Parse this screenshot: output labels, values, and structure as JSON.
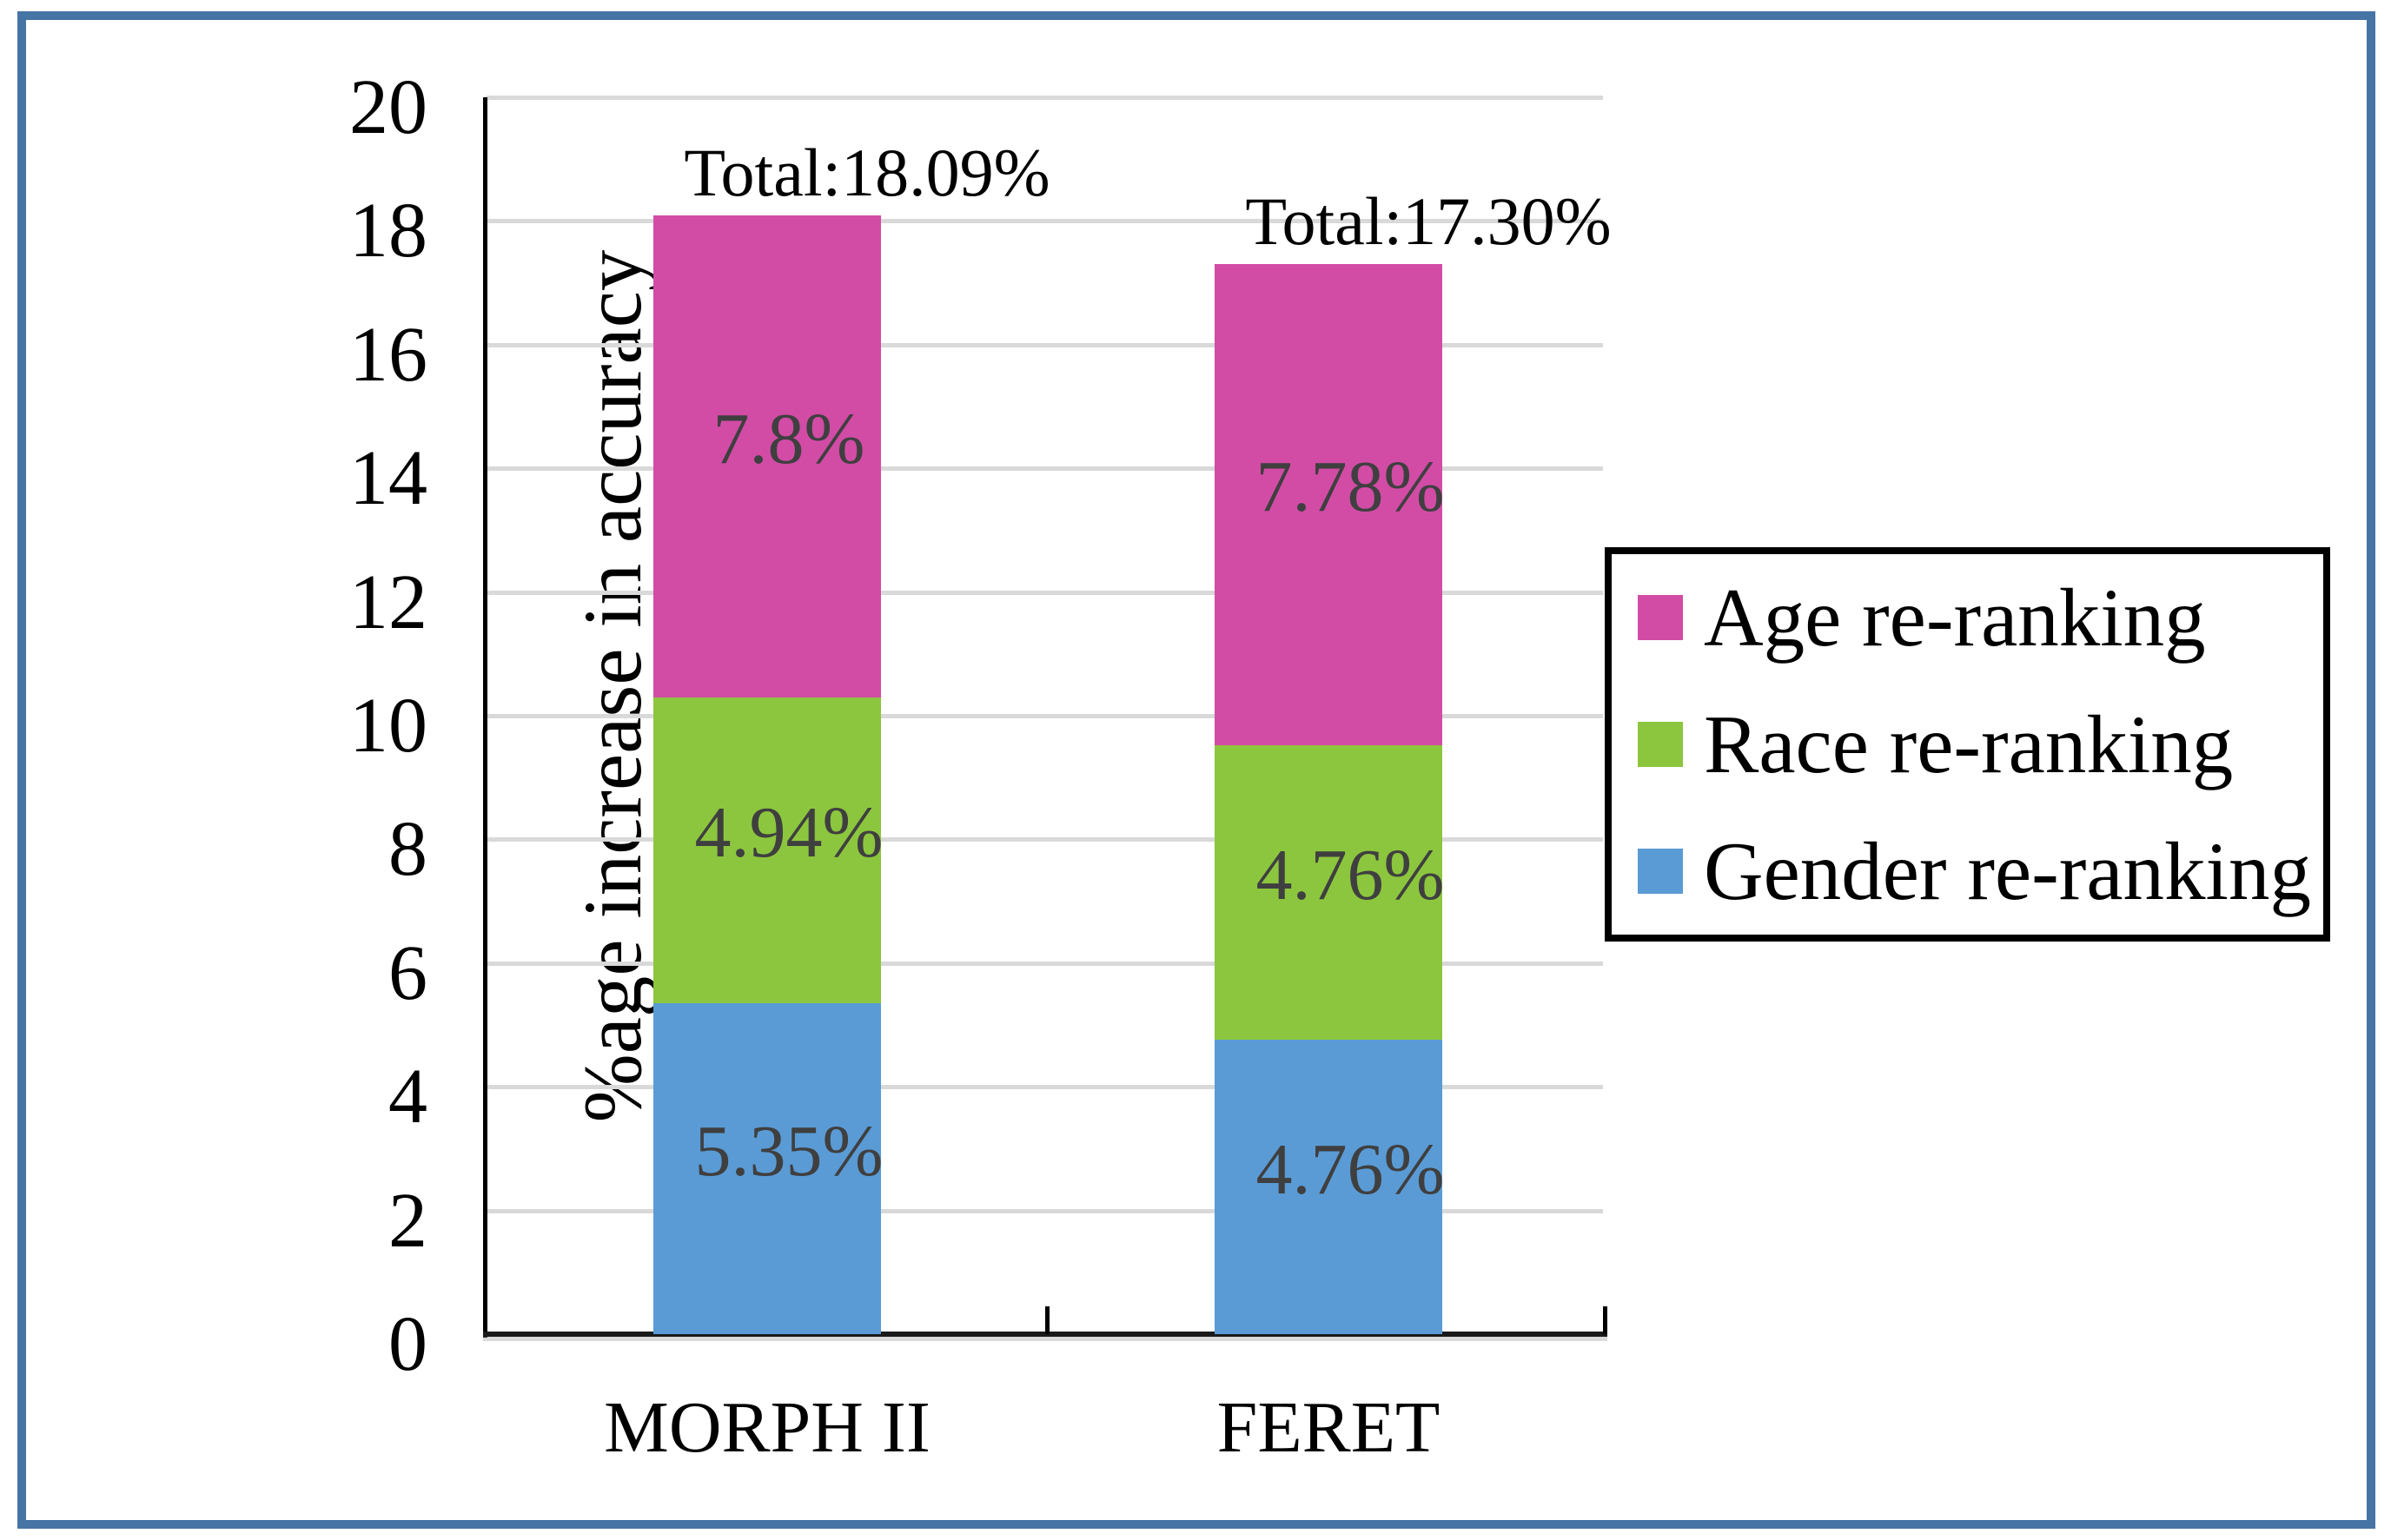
{
  "chart_data": {
    "type": "bar",
    "stacked": true,
    "title": "",
    "categories": [
      "MORPH II",
      "FERET"
    ],
    "series": [
      {
        "name": "Gender re-ranking",
        "color": "#5A9BD5",
        "values": [
          5.35,
          4.76
        ],
        "labels": [
          "5.35%",
          "4.76%"
        ]
      },
      {
        "name": "Race re-ranking",
        "color": "#8CC63E",
        "values": [
          4.94,
          4.76
        ],
        "labels": [
          "4.94%",
          "4.76%"
        ]
      },
      {
        "name": "Age re-ranking",
        "color": "#D24CA6",
        "values": [
          7.8,
          7.78
        ],
        "labels": [
          "7.8%",
          "7.78%"
        ]
      }
    ],
    "totals": [
      18.09,
      17.3
    ],
    "total_labels": [
      "Total:18.09%",
      "Total:17.30%"
    ],
    "xlabel": "",
    "ylabel": "%age increase in accuracy",
    "ylim": [
      0,
      20
    ],
    "yticks": [
      0,
      2,
      4,
      6,
      8,
      10,
      12,
      14,
      16,
      18,
      20
    ],
    "grid": true,
    "legend_position": "right",
    "legend_order": [
      "Age re-ranking",
      "Race re-ranking",
      "Gender re-ranking"
    ]
  },
  "colors": {
    "page_border": "#4674A4",
    "gridline": "#D9D9D9",
    "segment_label": "#3F3F3F",
    "axis": "#000000"
  }
}
